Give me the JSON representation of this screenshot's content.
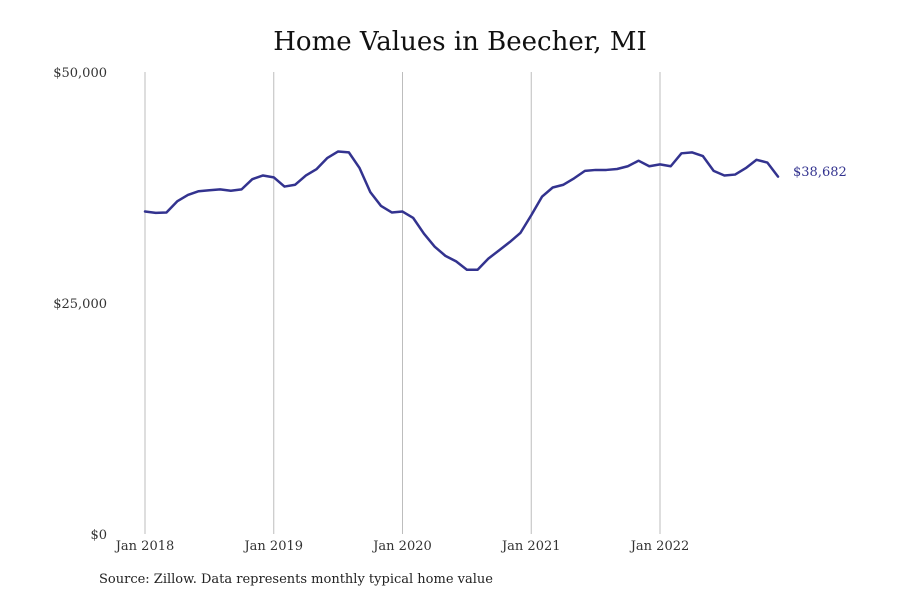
{
  "chart_data": {
    "type": "line",
    "title": "Home Values in Beecher, MI",
    "xlabel": "",
    "ylabel": "",
    "ylim": [
      0,
      50000
    ],
    "y_ticks": [
      0,
      25000,
      50000
    ],
    "y_tick_labels": [
      "$0",
      "$25,000",
      "$50,000"
    ],
    "x_ticks": [
      "2018-01",
      "2019-01",
      "2020-01",
      "2021-01",
      "2022-01"
    ],
    "x_tick_labels": [
      "Jan 2018",
      "Jan 2019",
      "Jan 2020",
      "Jan 2021",
      "Jan 2022"
    ],
    "vertical_gridlines": true,
    "horizontal_gridlines": false,
    "line_color": "#33338f",
    "end_label": "$38,682",
    "series": [
      {
        "x": [
          "2018-01",
          "2018-02",
          "2018-03",
          "2018-04",
          "2018-05",
          "2018-06",
          "2018-07",
          "2018-08",
          "2018-09",
          "2018-10",
          "2018-11",
          "2018-12",
          "2019-01",
          "2019-02",
          "2019-03",
          "2019-04",
          "2019-05",
          "2019-06",
          "2019-07",
          "2019-08",
          "2019-09",
          "2019-10",
          "2019-11",
          "2019-12",
          "2020-01",
          "2020-02",
          "2020-03",
          "2020-04",
          "2020-05",
          "2020-06",
          "2020-07",
          "2020-08",
          "2020-09",
          "2020-10",
          "2020-11",
          "2020-12",
          "2021-01",
          "2021-02",
          "2021-03",
          "2021-04",
          "2021-05",
          "2021-06",
          "2021-07",
          "2021-08",
          "2021-09",
          "2021-10",
          "2021-11",
          "2021-12",
          "2022-01",
          "2022-02",
          "2022-03",
          "2022-04",
          "2022-05",
          "2022-06",
          "2022-07",
          "2022-08",
          "2022-09",
          "2022-10",
          "2022-11",
          "2022-12"
        ],
        "y": [
          34900,
          34750,
          34800,
          36000,
          36700,
          37100,
          37200,
          37300,
          37150,
          37300,
          38400,
          38800,
          38600,
          37600,
          37800,
          38800,
          39500,
          40700,
          41400,
          41300,
          39600,
          37000,
          35500,
          34800,
          34900,
          34200,
          32500,
          31100,
          30100,
          29500,
          28600,
          28600,
          29800,
          30700,
          31600,
          32600,
          34500,
          36500,
          37500,
          37800,
          38500,
          39300,
          39400,
          39400,
          39500,
          39800,
          40400,
          39800,
          40000,
          39800,
          41200,
          41300,
          40900,
          39300,
          38800,
          38900,
          39600,
          40500,
          40200,
          38682
        ]
      }
    ]
  },
  "source_text": "Source: Zillow. Data represents monthly typical home value"
}
